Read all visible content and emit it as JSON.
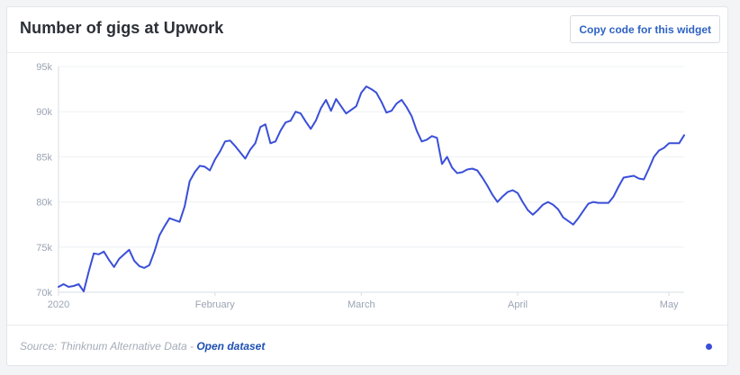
{
  "widget": {
    "title": "Number of gigs at Upwork",
    "copy_button_label": "Copy code for this widget",
    "source_prefix": "Source: Thinknum Alternative Data - ",
    "source_link": "Open dataset",
    "line_color": "#3a4fd8",
    "dot_color": "#3a4fd8"
  },
  "chart_data": {
    "type": "line",
    "title": "Number of gigs at Upwork",
    "xlabel": "",
    "ylabel": "",
    "ylim": [
      70000,
      95000
    ],
    "yticks": [
      70000,
      75000,
      80000,
      85000,
      90000,
      95000
    ],
    "ytick_labels": [
      "70k",
      "75k",
      "80k",
      "85k",
      "90k",
      "95k"
    ],
    "xtick_labels": [
      {
        "label": "2020",
        "day": 0
      },
      {
        "label": "February",
        "day": 31
      },
      {
        "label": "March",
        "day": 60
      },
      {
        "label": "April",
        "day": 91
      },
      {
        "label": "May",
        "day": 121
      }
    ],
    "x_start_label": "2020-01-01",
    "grid": "horizontal",
    "series": [
      {
        "values": [
          [
            0,
            70600
          ],
          [
            1,
            70900
          ],
          [
            2,
            70600
          ],
          [
            3,
            70700
          ],
          [
            4,
            70900
          ],
          [
            5,
            70100
          ],
          [
            6,
            72300
          ],
          [
            7,
            74300
          ],
          [
            8,
            74200
          ],
          [
            9,
            74500
          ],
          [
            10,
            73600
          ],
          [
            11,
            72800
          ],
          [
            12,
            73700
          ],
          [
            13,
            74200
          ],
          [
            14,
            74700
          ],
          [
            15,
            73500
          ],
          [
            16,
            72900
          ],
          [
            17,
            72700
          ],
          [
            18,
            73000
          ],
          [
            19,
            74500
          ],
          [
            20,
            76300
          ],
          [
            21,
            77300
          ],
          [
            22,
            78200
          ],
          [
            23,
            78000
          ],
          [
            24,
            77800
          ],
          [
            25,
            79500
          ],
          [
            26,
            82300
          ],
          [
            27,
            83300
          ],
          [
            28,
            84000
          ],
          [
            29,
            83900
          ],
          [
            30,
            83500
          ],
          [
            31,
            84700
          ],
          [
            32,
            85600
          ],
          [
            33,
            86700
          ],
          [
            34,
            86800
          ],
          [
            35,
            86200
          ],
          [
            36,
            85500
          ],
          [
            37,
            84800
          ],
          [
            38,
            85800
          ],
          [
            39,
            86500
          ],
          [
            40,
            88300
          ],
          [
            41,
            88600
          ],
          [
            42,
            86500
          ],
          [
            43,
            86700
          ],
          [
            44,
            87900
          ],
          [
            45,
            88800
          ],
          [
            46,
            89000
          ],
          [
            47,
            90000
          ],
          [
            48,
            89800
          ],
          [
            49,
            88900
          ],
          [
            50,
            88100
          ],
          [
            51,
            89000
          ],
          [
            52,
            90400
          ],
          [
            53,
            91300
          ],
          [
            54,
            90100
          ],
          [
            55,
            91400
          ],
          [
            56,
            90600
          ],
          [
            57,
            89800
          ],
          [
            58,
            90200
          ],
          [
            59,
            90600
          ],
          [
            60,
            92100
          ],
          [
            61,
            92800
          ],
          [
            62,
            92500
          ],
          [
            63,
            92100
          ],
          [
            64,
            91100
          ],
          [
            65,
            89900
          ],
          [
            66,
            90100
          ],
          [
            67,
            90900
          ],
          [
            68,
            91300
          ],
          [
            69,
            90500
          ],
          [
            70,
            89500
          ],
          [
            71,
            87900
          ],
          [
            72,
            86700
          ],
          [
            73,
            86900
          ],
          [
            74,
            87300
          ],
          [
            75,
            87100
          ],
          [
            76,
            84200
          ],
          [
            77,
            85000
          ],
          [
            78,
            83800
          ],
          [
            79,
            83200
          ],
          [
            80,
            83300
          ],
          [
            81,
            83600
          ],
          [
            82,
            83700
          ],
          [
            83,
            83500
          ],
          [
            84,
            82700
          ],
          [
            85,
            81800
          ],
          [
            86,
            80800
          ],
          [
            87,
            80000
          ],
          [
            88,
            80600
          ],
          [
            89,
            81100
          ],
          [
            90,
            81300
          ],
          [
            91,
            81000
          ],
          [
            92,
            80000
          ],
          [
            93,
            79100
          ],
          [
            94,
            78600
          ],
          [
            95,
            79100
          ],
          [
            96,
            79700
          ],
          [
            97,
            80000
          ],
          [
            98,
            79700
          ],
          [
            99,
            79200
          ],
          [
            100,
            78300
          ],
          [
            101,
            77900
          ],
          [
            102,
            77500
          ],
          [
            103,
            78200
          ],
          [
            104,
            79000
          ],
          [
            105,
            79800
          ],
          [
            106,
            80000
          ],
          [
            107,
            79900
          ],
          [
            108,
            79900
          ],
          [
            109,
            79900
          ],
          [
            110,
            80600
          ],
          [
            111,
            81700
          ],
          [
            112,
            82700
          ],
          [
            113,
            82800
          ],
          [
            114,
            82900
          ],
          [
            115,
            82600
          ],
          [
            116,
            82500
          ],
          [
            117,
            83700
          ],
          [
            118,
            85000
          ],
          [
            119,
            85700
          ],
          [
            120,
            86000
          ],
          [
            121,
            86500
          ],
          [
            122,
            86500
          ],
          [
            123,
            86500
          ],
          [
            124,
            87400
          ]
        ]
      }
    ]
  }
}
